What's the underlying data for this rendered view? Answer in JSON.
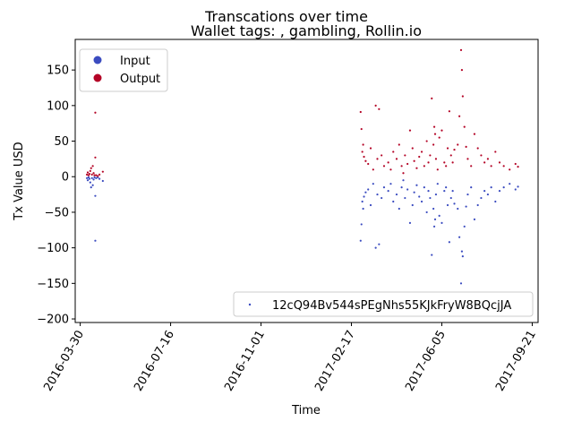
{
  "chart_data": {
    "type": "scatter",
    "title": "Transcations over time",
    "subtitle": "Wallet tags: , gambling, Rollin.io",
    "xlabel": "Time",
    "ylabel": "Tx Value USD",
    "xlim": [
      "2016-03-24",
      "2017-09-28"
    ],
    "ylim": [
      -205,
      193
    ],
    "x_ticks": [
      "2016-03-30",
      "2016-07-16",
      "2016-11-01",
      "2017-02-17",
      "2017-06-05",
      "2017-09-21"
    ],
    "y_ticks": [
      150,
      100,
      50,
      0,
      -50,
      -100,
      -150,
      -200
    ],
    "y_tick_labels": [
      "150",
      "100",
      "50",
      "0",
      "−50",
      "−100",
      "−150",
      "−200"
    ],
    "legend_position": "upper left",
    "address_legend_position": "lower right",
    "address_label": "12cQ94Bv544sPEgNhs55KJkFryW8BQcjJA",
    "colors": {
      "input": "#3b4cc0",
      "output": "#b40426",
      "address_marker": "#3b4cc0"
    },
    "series": [
      {
        "name": "Input",
        "color": "#3b4cc0",
        "points": [
          [
            "2016-04-07",
            -2
          ],
          [
            "2016-04-08",
            -5
          ],
          [
            "2016-04-09",
            -1
          ],
          [
            "2016-04-10",
            -3
          ],
          [
            "2016-04-11",
            -8
          ],
          [
            "2016-04-12",
            -15
          ],
          [
            "2016-04-13",
            -2
          ],
          [
            "2016-04-14",
            -12
          ],
          [
            "2016-04-15",
            -4
          ],
          [
            "2016-04-16",
            -1
          ],
          [
            "2016-04-17",
            -27
          ],
          [
            "2016-04-17",
            -90
          ],
          [
            "2016-04-18",
            -2
          ],
          [
            "2016-04-20",
            -1
          ],
          [
            "2016-04-22",
            -3
          ],
          [
            "2016-04-26",
            -6
          ],
          [
            "2017-02-28",
            -90
          ],
          [
            "2017-03-01",
            -67
          ],
          [
            "2017-03-02",
            -35
          ],
          [
            "2017-03-03",
            -45
          ],
          [
            "2017-03-04",
            -28
          ],
          [
            "2017-03-06",
            -22
          ],
          [
            "2017-03-09",
            -18
          ],
          [
            "2017-03-12",
            -40
          ],
          [
            "2017-03-15",
            -10
          ],
          [
            "2017-03-18",
            -100
          ],
          [
            "2017-03-20",
            -25
          ],
          [
            "2017-03-22",
            -95
          ],
          [
            "2017-03-25",
            -30
          ],
          [
            "2017-03-28",
            -15
          ],
          [
            "2017-04-02",
            -20
          ],
          [
            "2017-04-05",
            -10
          ],
          [
            "2017-04-08",
            -35
          ],
          [
            "2017-04-12",
            -25
          ],
          [
            "2017-04-15",
            -45
          ],
          [
            "2017-04-18",
            -15
          ],
          [
            "2017-04-20",
            -5
          ],
          [
            "2017-04-22",
            -30
          ],
          [
            "2017-04-25",
            -18
          ],
          [
            "2017-04-28",
            -65
          ],
          [
            "2017-05-01",
            -40
          ],
          [
            "2017-05-03",
            -22
          ],
          [
            "2017-05-06",
            -12
          ],
          [
            "2017-05-09",
            -28
          ],
          [
            "2017-05-12",
            -35
          ],
          [
            "2017-05-15",
            -15
          ],
          [
            "2017-05-18",
            -50
          ],
          [
            "2017-05-20",
            -20
          ],
          [
            "2017-05-22",
            -30
          ],
          [
            "2017-05-24",
            -110
          ],
          [
            "2017-05-26",
            -45
          ],
          [
            "2017-05-27",
            -70
          ],
          [
            "2017-05-28",
            -60
          ],
          [
            "2017-05-29",
            -25
          ],
          [
            "2017-05-31",
            -10
          ],
          [
            "2017-06-02",
            -55
          ],
          [
            "2017-06-05",
            -65
          ],
          [
            "2017-06-08",
            -20
          ],
          [
            "2017-06-10",
            -15
          ],
          [
            "2017-06-12",
            -40
          ],
          [
            "2017-06-14",
            -92
          ],
          [
            "2017-06-16",
            -30
          ],
          [
            "2017-06-18",
            -20
          ],
          [
            "2017-06-20",
            -38
          ],
          [
            "2017-06-24",
            -45
          ],
          [
            "2017-06-26",
            -85
          ],
          [
            "2017-06-28",
            -150
          ],
          [
            "2017-06-29",
            -105
          ],
          [
            "2017-06-30",
            -112
          ],
          [
            "2017-07-02",
            -70
          ],
          [
            "2017-07-04",
            -42
          ],
          [
            "2017-07-06",
            -25
          ],
          [
            "2017-07-10",
            -15
          ],
          [
            "2017-07-14",
            -60
          ],
          [
            "2017-07-18",
            -40
          ],
          [
            "2017-07-22",
            -30
          ],
          [
            "2017-07-26",
            -20
          ],
          [
            "2017-07-30",
            -25
          ],
          [
            "2017-08-03",
            -15
          ],
          [
            "2017-08-08",
            -35
          ],
          [
            "2017-08-13",
            -20
          ],
          [
            "2017-08-18",
            -15
          ],
          [
            "2017-08-25",
            -10
          ],
          [
            "2017-09-01",
            -18
          ],
          [
            "2017-09-04",
            -14
          ]
        ]
      },
      {
        "name": "Output",
        "color": "#b40426",
        "points": [
          [
            "2016-04-07",
            3
          ],
          [
            "2016-04-08",
            6
          ],
          [
            "2016-04-09",
            2
          ],
          [
            "2016-04-10",
            4
          ],
          [
            "2016-04-11",
            8
          ],
          [
            "2016-04-12",
            12
          ],
          [
            "2016-04-13",
            3
          ],
          [
            "2016-04-14",
            15
          ],
          [
            "2016-04-15",
            5
          ],
          [
            "2016-04-16",
            2
          ],
          [
            "2016-04-17",
            27
          ],
          [
            "2016-04-17",
            90
          ],
          [
            "2016-04-18",
            2
          ],
          [
            "2016-04-20",
            1
          ],
          [
            "2016-04-22",
            3
          ],
          [
            "2016-04-26",
            7
          ],
          [
            "2017-02-28",
            91
          ],
          [
            "2017-03-01",
            67
          ],
          [
            "2017-03-02",
            35
          ],
          [
            "2017-03-03",
            45
          ],
          [
            "2017-03-04",
            28
          ],
          [
            "2017-03-06",
            22
          ],
          [
            "2017-03-09",
            18
          ],
          [
            "2017-03-12",
            40
          ],
          [
            "2017-03-15",
            10
          ],
          [
            "2017-03-18",
            100
          ],
          [
            "2017-03-20",
            25
          ],
          [
            "2017-03-22",
            95
          ],
          [
            "2017-03-25",
            30
          ],
          [
            "2017-03-28",
            15
          ],
          [
            "2017-04-02",
            20
          ],
          [
            "2017-04-05",
            10
          ],
          [
            "2017-04-08",
            35
          ],
          [
            "2017-04-12",
            25
          ],
          [
            "2017-04-15",
            45
          ],
          [
            "2017-04-18",
            15
          ],
          [
            "2017-04-20",
            5
          ],
          [
            "2017-04-22",
            30
          ],
          [
            "2017-04-25",
            18
          ],
          [
            "2017-04-28",
            65
          ],
          [
            "2017-05-01",
            40
          ],
          [
            "2017-05-03",
            22
          ],
          [
            "2017-05-06",
            12
          ],
          [
            "2017-05-09",
            28
          ],
          [
            "2017-05-12",
            35
          ],
          [
            "2017-05-15",
            15
          ],
          [
            "2017-05-18",
            50
          ],
          [
            "2017-05-20",
            20
          ],
          [
            "2017-05-22",
            30
          ],
          [
            "2017-05-24",
            110
          ],
          [
            "2017-05-26",
            45
          ],
          [
            "2017-05-27",
            70
          ],
          [
            "2017-05-28",
            60
          ],
          [
            "2017-05-29",
            25
          ],
          [
            "2017-05-31",
            10
          ],
          [
            "2017-06-02",
            55
          ],
          [
            "2017-06-05",
            65
          ],
          [
            "2017-06-08",
            20
          ],
          [
            "2017-06-10",
            15
          ],
          [
            "2017-06-12",
            40
          ],
          [
            "2017-06-14",
            92
          ],
          [
            "2017-06-16",
            30
          ],
          [
            "2017-06-18",
            20
          ],
          [
            "2017-06-20",
            38
          ],
          [
            "2017-06-24",
            45
          ],
          [
            "2017-06-26",
            85
          ],
          [
            "2017-06-28",
            178
          ],
          [
            "2017-06-29",
            150
          ],
          [
            "2017-06-30",
            113
          ],
          [
            "2017-07-02",
            70
          ],
          [
            "2017-07-04",
            42
          ],
          [
            "2017-07-06",
            25
          ],
          [
            "2017-07-10",
            15
          ],
          [
            "2017-07-14",
            60
          ],
          [
            "2017-07-18",
            40
          ],
          [
            "2017-07-22",
            30
          ],
          [
            "2017-07-26",
            20
          ],
          [
            "2017-07-30",
            25
          ],
          [
            "2017-08-03",
            15
          ],
          [
            "2017-08-08",
            35
          ],
          [
            "2017-08-13",
            20
          ],
          [
            "2017-08-18",
            15
          ],
          [
            "2017-08-25",
            10
          ],
          [
            "2017-09-01",
            18
          ],
          [
            "2017-09-04",
            14
          ]
        ]
      }
    ]
  }
}
